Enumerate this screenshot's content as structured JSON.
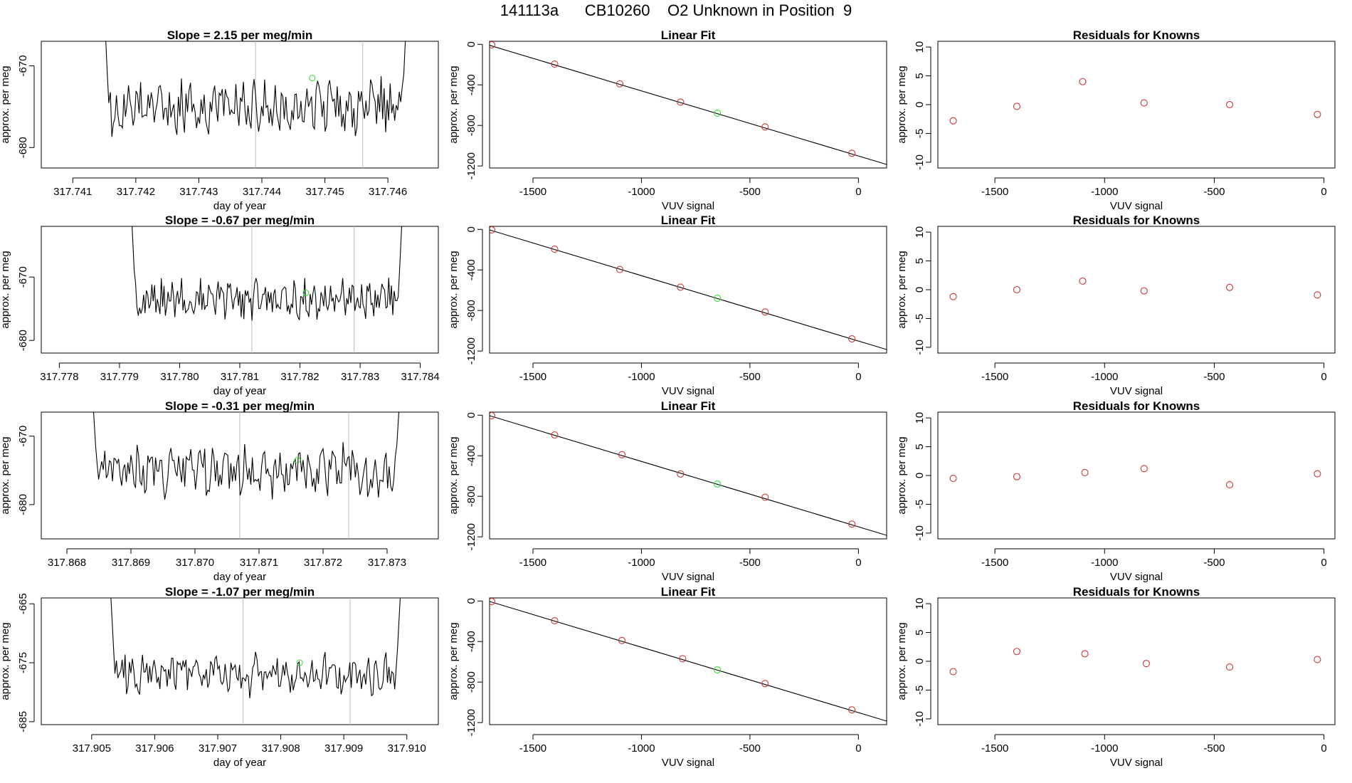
{
  "page": {
    "title": "141113a      CB10260    O2 Unknown in Position  9"
  },
  "colors": {
    "known": "#cc3333",
    "unknown": "#33dd33",
    "line": "#000000",
    "vline": "#bbbbbb"
  },
  "chart_data": [
    {
      "type": "line",
      "row": 0,
      "title": "Slope =  2.15  per meg/min",
      "xlabel": "day of year",
      "ylabel": "approx. per meg",
      "xlim": [
        317.7405,
        317.7468
      ],
      "ylim": [
        -682.5,
        -667
      ],
      "xticks": [
        "317.741",
        "317.742",
        "317.743",
        "317.744",
        "317.745",
        "317.746"
      ],
      "xtick_values": [
        317.741,
        317.742,
        317.743,
        317.744,
        317.745,
        317.746
      ],
      "yticks": [
        "-670",
        "-680"
      ],
      "ytick_values": [
        -670,
        -680
      ],
      "vlines": [
        317.7439,
        317.7456
      ],
      "unknown_point": [
        317.7448,
        -671.5
      ],
      "series": [
        {
          "name": "signal",
          "x_start": 317.7415,
          "x_end": 317.7463,
          "seed": 11,
          "base": -675.0,
          "amp": 2.8,
          "edge_left": -663,
          "edge_right": -663
        }
      ]
    },
    {
      "type": "scatter",
      "row": 0,
      "title": "Linear Fit",
      "xlabel": "VUV signal",
      "ylabel": "approx. per meg",
      "xlim": [
        -1700,
        130
      ],
      "ylim": [
        -1220,
        30
      ],
      "xticks": [
        "-1500",
        "-1000",
        "-500",
        "0"
      ],
      "xtick_values": [
        -1500,
        -1000,
        -500,
        0
      ],
      "yticks": [
        "0",
        "-400",
        "-800",
        "-1200"
      ],
      "ytick_values": [
        0,
        -400,
        -800,
        -1200
      ],
      "fit_line": [
        [
          -1700,
          -10
        ],
        [
          130,
          -1185
        ]
      ],
      "known_points": [
        [
          -1690,
          -5
        ],
        [
          -1400,
          -195
        ],
        [
          -1100,
          -390
        ],
        [
          -820,
          -570
        ],
        [
          -430,
          -815
        ],
        [
          -30,
          -1075
        ]
      ],
      "unknown_point": [
        -650,
        -680
      ]
    },
    {
      "type": "scatter",
      "row": 0,
      "title": "Residuals for Knowns",
      "xlabel": "VUV signal",
      "ylabel": "approx. per meg",
      "xlim": [
        -1760,
        50
      ],
      "ylim": [
        -11,
        11
      ],
      "xticks": [
        "-1500",
        "-1000",
        "-500",
        "0"
      ],
      "xtick_values": [
        -1500,
        -1000,
        -500,
        0
      ],
      "yticks": [
        "10",
        "5",
        "0",
        "-5",
        "-10"
      ],
      "ytick_values": [
        10,
        5,
        0,
        -5,
        -10
      ],
      "known_points": [
        [
          -1690,
          -2.8
        ],
        [
          -1400,
          -0.3
        ],
        [
          -1100,
          4.0
        ],
        [
          -820,
          0.3
        ],
        [
          -430,
          0.0
        ],
        [
          -30,
          -1.7
        ]
      ]
    },
    {
      "type": "line",
      "row": 1,
      "title": "Slope =  -0.67  per meg/min",
      "xlabel": "day of year",
      "ylabel": "approx. per meg",
      "xlim": [
        317.7777,
        317.7843
      ],
      "ylim": [
        -682,
        -662
      ],
      "xticks": [
        "317.778",
        "317.779",
        "317.780",
        "317.781",
        "317.782",
        "317.783",
        "317.784"
      ],
      "xtick_values": [
        317.778,
        317.779,
        317.78,
        317.781,
        317.782,
        317.783,
        317.784
      ],
      "yticks": [
        "-670",
        "-680"
      ],
      "ytick_values": [
        -670,
        -680
      ],
      "vlines": [
        317.7812,
        317.7829
      ],
      "unknown_point": [
        317.7821,
        -672.5
      ],
      "series": [
        {
          "name": "signal",
          "x_start": 317.7792,
          "x_end": 317.7837,
          "seed": 23,
          "base": -673.5,
          "amp": 2.6,
          "edge_left": -660,
          "edge_right": -660
        }
      ]
    },
    {
      "type": "scatter",
      "row": 1,
      "title": "Linear Fit",
      "xlabel": "VUV signal",
      "ylabel": "approx. per meg",
      "xlim": [
        -1700,
        130
      ],
      "ylim": [
        -1220,
        30
      ],
      "xticks": [
        "-1500",
        "-1000",
        "-500",
        "0"
      ],
      "xtick_values": [
        -1500,
        -1000,
        -500,
        0
      ],
      "yticks": [
        "0",
        "-400",
        "-800",
        "-1200"
      ],
      "ytick_values": [
        0,
        -400,
        -800,
        -1200
      ],
      "fit_line": [
        [
          -1700,
          -5
        ],
        [
          130,
          -1185
        ]
      ],
      "known_points": [
        [
          -1690,
          -5
        ],
        [
          -1400,
          -195
        ],
        [
          -1100,
          -395
        ],
        [
          -820,
          -570
        ],
        [
          -430,
          -815
        ],
        [
          -30,
          -1080
        ]
      ],
      "unknown_point": [
        -650,
        -680
      ]
    },
    {
      "type": "scatter",
      "row": 1,
      "title": "Residuals for Knowns",
      "xlabel": "VUV signal",
      "ylabel": "approx. per meg",
      "xlim": [
        -1760,
        50
      ],
      "ylim": [
        -11,
        11
      ],
      "xticks": [
        "-1500",
        "-1000",
        "-500",
        "0"
      ],
      "xtick_values": [
        -1500,
        -1000,
        -500,
        0
      ],
      "yticks": [
        "10",
        "5",
        "0",
        "-5",
        "-10"
      ],
      "ytick_values": [
        10,
        5,
        0,
        -5,
        -10
      ],
      "known_points": [
        [
          -1690,
          -1.2
        ],
        [
          -1400,
          0.0
        ],
        [
          -1100,
          1.5
        ],
        [
          -820,
          -0.2
        ],
        [
          -430,
          0.4
        ],
        [
          -30,
          -0.9
        ]
      ]
    },
    {
      "type": "line",
      "row": 2,
      "title": "Slope =  -0.31  per meg/min",
      "xlabel": "day of year",
      "ylabel": "approx. per meg",
      "xlim": [
        317.8676,
        317.8738
      ],
      "ylim": [
        -685,
        -666.5
      ],
      "xticks": [
        "317.868",
        "317.869",
        "317.870",
        "317.871",
        "317.872",
        "317.873"
      ],
      "xtick_values": [
        317.868,
        317.869,
        317.87,
        317.871,
        317.872,
        317.873
      ],
      "yticks": [
        "-670",
        "-680"
      ],
      "ytick_values": [
        -670,
        -680
      ],
      "vlines": [
        317.8707,
        317.8724
      ],
      "unknown_point": [
        317.8716,
        -673.5
      ],
      "series": [
        {
          "name": "signal",
          "x_start": 317.8684,
          "x_end": 317.8732,
          "seed": 37,
          "base": -675.0,
          "amp": 3.2,
          "edge_left": -664,
          "edge_right": -664
        }
      ]
    },
    {
      "type": "scatter",
      "row": 2,
      "title": "Linear Fit",
      "xlabel": "VUV signal",
      "ylabel": "approx. per meg",
      "xlim": [
        -1700,
        130
      ],
      "ylim": [
        -1220,
        30
      ],
      "xticks": [
        "-1500",
        "-1000",
        "-500",
        "0"
      ],
      "xtick_values": [
        -1500,
        -1000,
        -500,
        0
      ],
      "yticks": [
        "0",
        "-400",
        "-800",
        "-1200"
      ],
      "ytick_values": [
        0,
        -400,
        -800,
        -1200
      ],
      "fit_line": [
        [
          -1700,
          -5
        ],
        [
          130,
          -1185
        ]
      ],
      "known_points": [
        [
          -1690,
          -5
        ],
        [
          -1400,
          -195
        ],
        [
          -1090,
          -390
        ],
        [
          -820,
          -580
        ],
        [
          -430,
          -810
        ],
        [
          -30,
          -1075
        ]
      ],
      "unknown_point": [
        -650,
        -680
      ]
    },
    {
      "type": "scatter",
      "row": 2,
      "title": "Residuals for Knowns",
      "xlabel": "VUV signal",
      "ylabel": "approx. per meg",
      "xlim": [
        -1760,
        50
      ],
      "ylim": [
        -11,
        11
      ],
      "xticks": [
        "-1500",
        "-1000",
        "-500",
        "0"
      ],
      "xtick_values": [
        -1500,
        -1000,
        -500,
        0
      ],
      "yticks": [
        "10",
        "5",
        "0",
        "-5",
        "-10"
      ],
      "ytick_values": [
        10,
        5,
        0,
        -5,
        -10
      ],
      "known_points": [
        [
          -1690,
          -0.5
        ],
        [
          -1400,
          -0.2
        ],
        [
          -1090,
          0.5
        ],
        [
          -820,
          1.2
        ],
        [
          -430,
          -1.6
        ],
        [
          -30,
          0.3
        ]
      ]
    },
    {
      "type": "line",
      "row": 3,
      "title": "Slope =  -1.07  per meg/min",
      "xlabel": "day of year",
      "ylabel": "approx. per meg",
      "xlim": [
        317.9042,
        317.9105
      ],
      "ylim": [
        -685.5,
        -664
      ],
      "xticks": [
        "317.905",
        "317.906",
        "317.907",
        "317.908",
        "317.909",
        "317.910"
      ],
      "xtick_values": [
        317.905,
        317.906,
        317.907,
        317.908,
        317.909,
        317.91
      ],
      "yticks": [
        "-665",
        "-675",
        "-685"
      ],
      "ytick_values": [
        -665,
        -675,
        -685
      ],
      "vlines": [
        317.9074,
        317.9091
      ],
      "unknown_point": [
        317.9083,
        -675
      ],
      "series": [
        {
          "name": "signal",
          "x_start": 317.9053,
          "x_end": 317.9099,
          "seed": 53,
          "base": -677.0,
          "amp": 3.0,
          "edge_left": -663,
          "edge_right": -663
        }
      ]
    },
    {
      "type": "scatter",
      "row": 3,
      "title": "Linear Fit",
      "xlabel": "VUV signal",
      "ylabel": "approx. per meg",
      "xlim": [
        -1700,
        130
      ],
      "ylim": [
        -1220,
        30
      ],
      "xticks": [
        "-1500",
        "-1000",
        "-500",
        "0"
      ],
      "xtick_values": [
        -1500,
        -1000,
        -500,
        0
      ],
      "yticks": [
        "0",
        "-400",
        "-800",
        "-1200"
      ],
      "ytick_values": [
        0,
        -400,
        -800,
        -1200
      ],
      "fit_line": [
        [
          -1700,
          -5
        ],
        [
          130,
          -1185
        ]
      ],
      "known_points": [
        [
          -1690,
          -5
        ],
        [
          -1400,
          -195
        ],
        [
          -1090,
          -390
        ],
        [
          -810,
          -570
        ],
        [
          -430,
          -815
        ],
        [
          -30,
          -1075
        ]
      ],
      "unknown_point": [
        -650,
        -680
      ]
    },
    {
      "type": "scatter",
      "row": 3,
      "title": "Residuals for Knowns",
      "xlabel": "VUV signal",
      "ylabel": "approx. per meg",
      "xlim": [
        -1760,
        50
      ],
      "ylim": [
        -11,
        11
      ],
      "xticks": [
        "-1500",
        "-1000",
        "-500",
        "0"
      ],
      "xtick_values": [
        -1500,
        -1000,
        -500,
        0
      ],
      "yticks": [
        "10",
        "5",
        "0",
        "-5",
        "-10"
      ],
      "ytick_values": [
        10,
        5,
        0,
        -5,
        -10
      ],
      "known_points": [
        [
          -1690,
          -1.8
        ],
        [
          -1400,
          1.7
        ],
        [
          -1090,
          1.3
        ],
        [
          -810,
          -0.4
        ],
        [
          -430,
          -1.0
        ],
        [
          -30,
          0.3
        ]
      ]
    }
  ]
}
